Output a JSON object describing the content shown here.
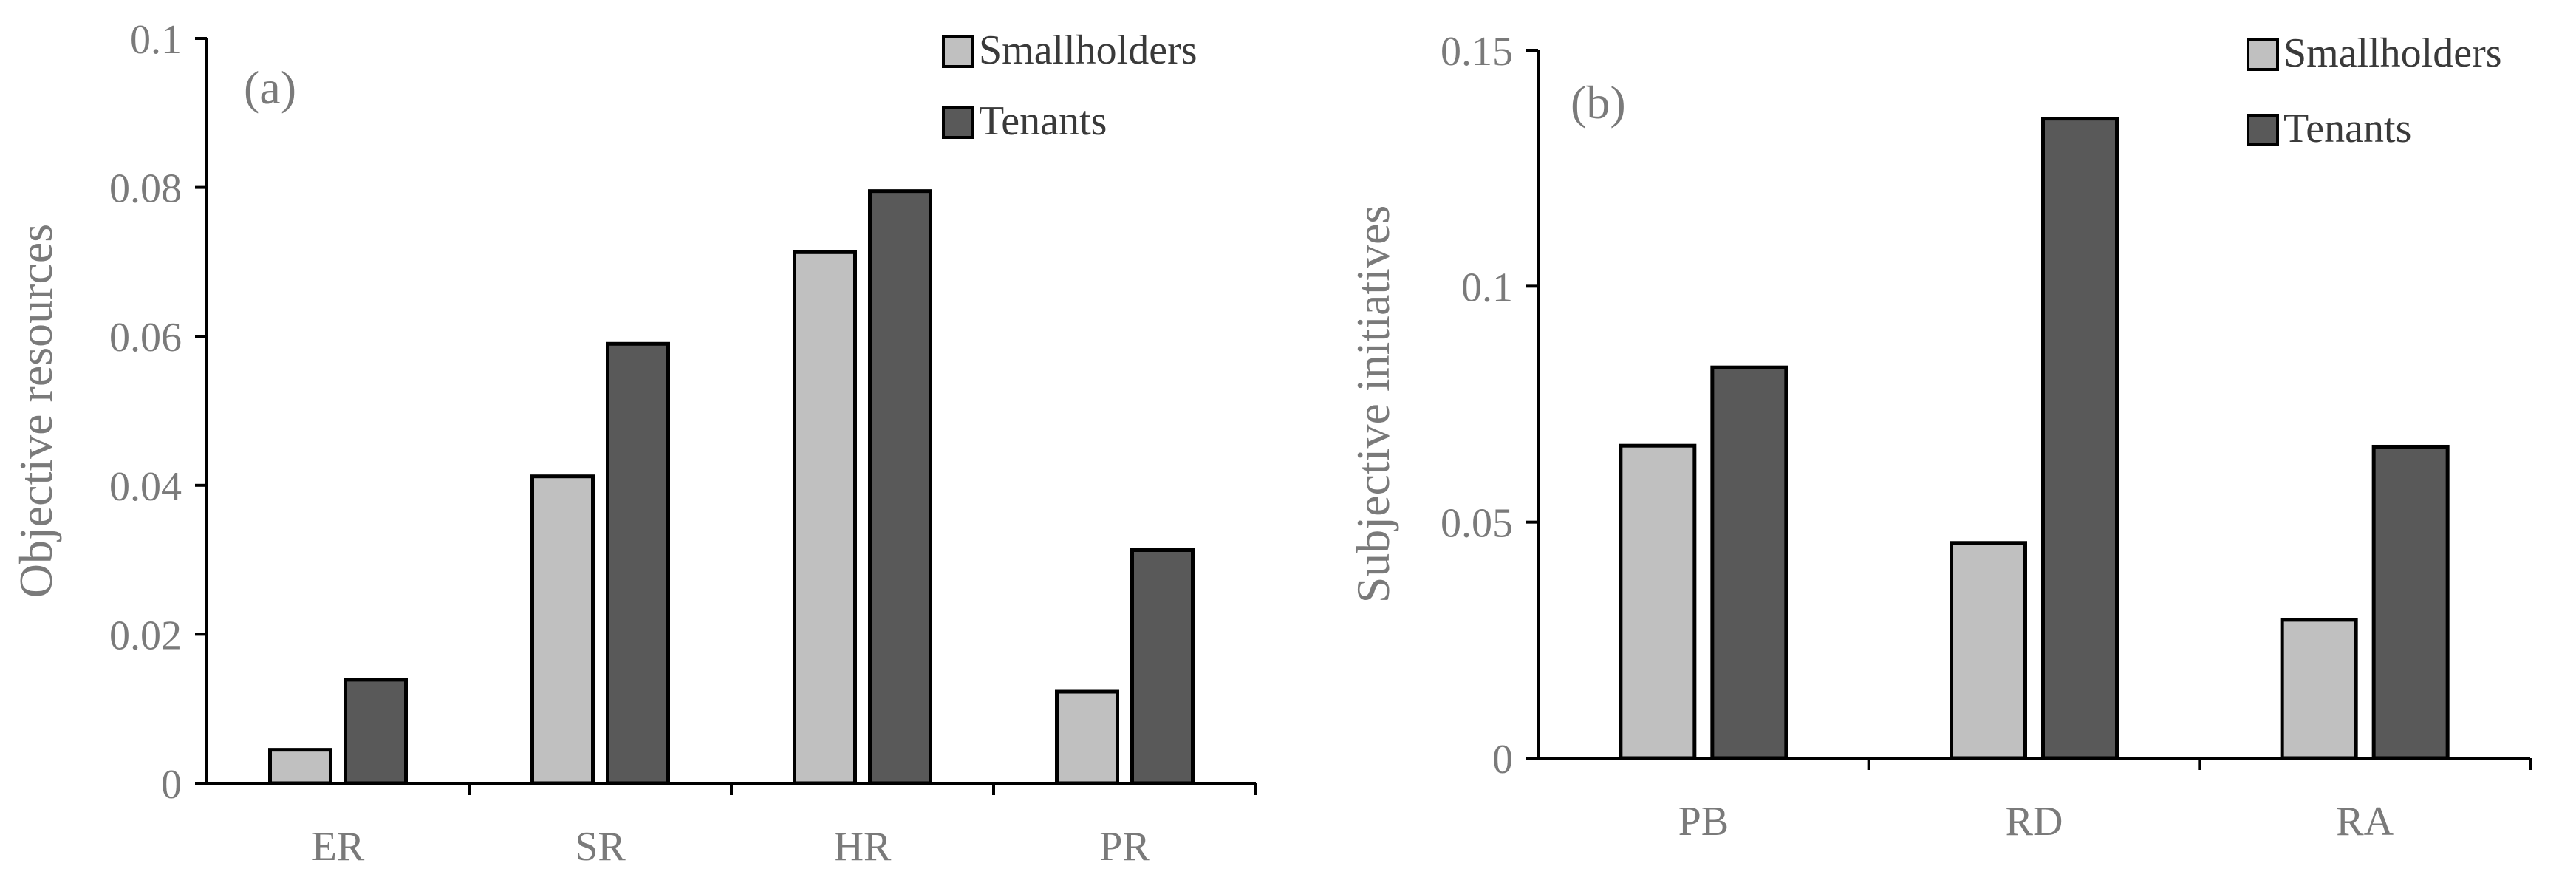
{
  "colors": {
    "smallholders": "#c0c0c0",
    "tenants": "#595959",
    "stroke": "#000000",
    "axis": "#000000"
  },
  "chart_data": [
    {
      "type": "bar",
      "panel_label": "(a)",
      "title": "",
      "xlabel": "",
      "ylabel": "Objective resources",
      "ylim": [
        0,
        0.1
      ],
      "yticks": [
        0,
        0.02,
        0.04,
        0.06,
        0.08,
        0.1
      ],
      "ytick_labels": [
        "0",
        "0.02",
        "0.04",
        "0.06",
        "0.08",
        "0.1"
      ],
      "categories": [
        "ER",
        "SR",
        "HR",
        "PR"
      ],
      "series": [
        {
          "name": "Smallholders",
          "values": [
            0.0045,
            0.0412,
            0.0713,
            0.0123
          ]
        },
        {
          "name": "Tenants",
          "values": [
            0.0139,
            0.059,
            0.0795,
            0.0313
          ]
        }
      ],
      "legend": [
        "Smallholders",
        "Tenants"
      ],
      "legend_position": "top-right",
      "grid": false
    },
    {
      "type": "bar",
      "panel_label": "(b)",
      "title": "",
      "xlabel": "",
      "ylabel": "Subjective initiatives",
      "ylim": [
        0,
        0.15
      ],
      "yticks": [
        0,
        0.05,
        0.1,
        0.15
      ],
      "ytick_labels": [
        "0",
        "0.05",
        "0.1",
        "0.15"
      ],
      "categories": [
        "PB",
        "RD",
        "RA"
      ],
      "series": [
        {
          "name": "Smallholders",
          "values": [
            0.0662,
            0.0456,
            0.0293
          ]
        },
        {
          "name": "Tenants",
          "values": [
            0.0828,
            0.1355,
            0.066
          ]
        }
      ],
      "legend": [
        "Smallholders",
        "Tenants"
      ],
      "legend_position": "top-right",
      "grid": false
    }
  ]
}
